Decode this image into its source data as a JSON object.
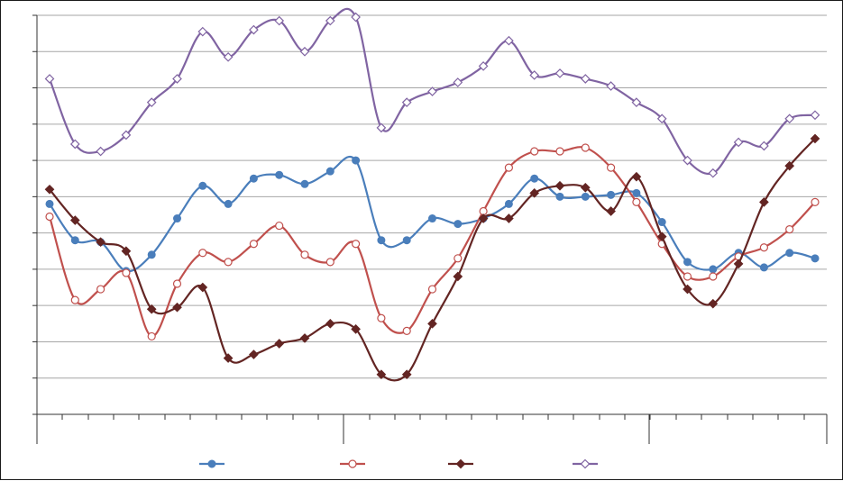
{
  "chart_data": {
    "type": "line",
    "title": "",
    "xlabel": "",
    "ylabel": "",
    "grid": true,
    "legend_position": "bottom",
    "ylim": [
      0,
      11
    ],
    "x_count": 31,
    "series": [
      {
        "color": "#4a7ebb",
        "marker": "circle-filled",
        "values": [
          5.8,
          4.8,
          4.75,
          3.95,
          4.4,
          5.4,
          6.3,
          5.8,
          6.5,
          6.6,
          6.35,
          6.7,
          7.0,
          4.8,
          4.8,
          5.4,
          5.25,
          5.4,
          5.8,
          6.5,
          6.0,
          6.0,
          6.05,
          6.1,
          5.3,
          4.2,
          4.0,
          4.45,
          4.05,
          4.45,
          4.3
        ]
      },
      {
        "color": "#c0504d",
        "marker": "circle-open",
        "values": [
          5.45,
          3.15,
          3.45,
          3.9,
          2.15,
          3.6,
          4.45,
          4.2,
          4.7,
          5.2,
          4.4,
          4.2,
          4.7,
          2.65,
          2.3,
          3.45,
          4.3,
          5.6,
          6.8,
          7.25,
          7.25,
          7.35,
          6.8,
          5.85,
          4.7,
          3.8,
          3.8,
          4.35,
          4.6,
          5.1,
          5.85
        ]
      },
      {
        "color": "#632523",
        "marker": "diamond-filled",
        "values": [
          6.2,
          5.35,
          4.75,
          4.5,
          2.9,
          2.95,
          3.5,
          1.55,
          1.65,
          1.95,
          2.1,
          2.5,
          2.35,
          1.1,
          1.1,
          2.5,
          3.8,
          5.4,
          5.4,
          6.1,
          6.3,
          6.25,
          5.6,
          6.55,
          4.9,
          3.45,
          3.05,
          4.15,
          5.85,
          6.85,
          7.6
        ]
      },
      {
        "color": "#8064a2",
        "marker": "diamond-open",
        "values": [
          9.25,
          7.45,
          7.25,
          7.7,
          8.6,
          9.25,
          10.55,
          9.85,
          10.6,
          10.85,
          10.0,
          10.85,
          10.95,
          7.9,
          8.6,
          8.9,
          9.15,
          9.6,
          10.3,
          9.35,
          9.4,
          9.25,
          9.05,
          8.6,
          8.15,
          7.0,
          6.65,
          7.5,
          7.4,
          8.15,
          8.25
        ]
      }
    ]
  }
}
